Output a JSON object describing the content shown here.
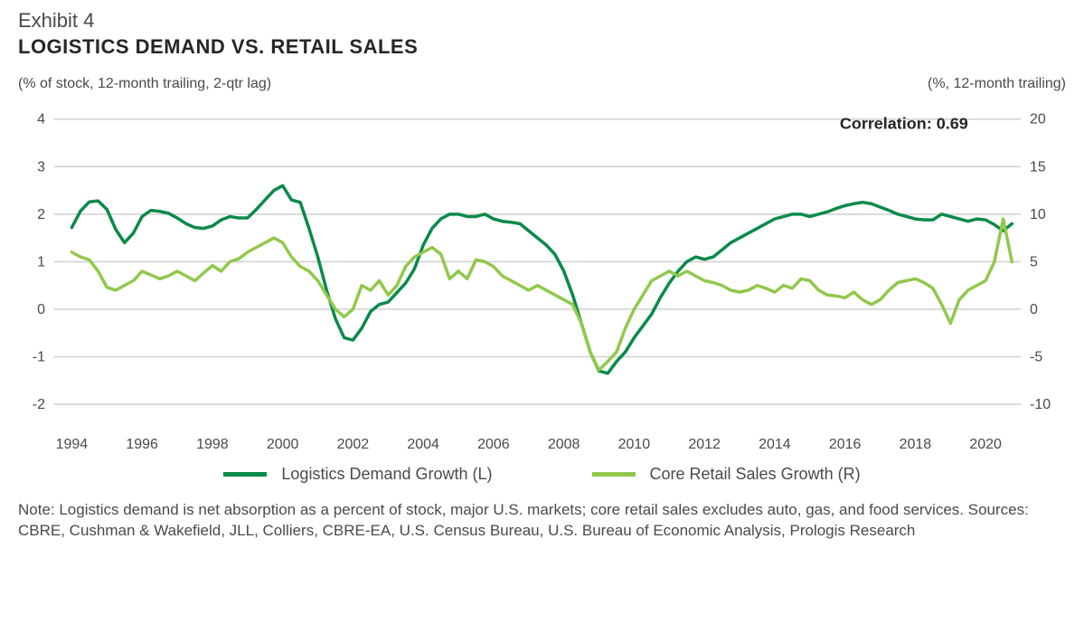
{
  "exhibit_label": "Exhibit 4",
  "title": "LOGISTICS DEMAND VS. RETAIL SALES",
  "left_axis_label": "(% of stock, 12-month trailing, 2-qtr lag)",
  "right_axis_label": "(%, 12-month trailing)",
  "correlation_label": "Correlation: 0.69",
  "legend": {
    "series1": "Logistics Demand Growth (L)",
    "series2": "Core Retail Sales Growth (R)"
  },
  "note": "Note: Logistics demand is net absorption as a percent of stock, major U.S. markets; core retail sales excludes auto, gas, and food services. Sources: CBRE, Cushman & Wakefield, JLL, Colliers, CBRE-EA, U.S. Census Bureau, U.S. Bureau of Economic Analysis, Prologis Research",
  "chart": {
    "type": "line-dual-axis",
    "background_color": "#ffffff",
    "grid_color": "#cfcfcf",
    "grid_width": 1.5,
    "text_color": "#4a4a4a",
    "tick_fontsize": 16,
    "title_fontsize": 22,
    "x": {
      "min": 1993.5,
      "max": 2021.0,
      "ticks": [
        1994,
        1996,
        1998,
        2000,
        2002,
        2004,
        2006,
        2008,
        2010,
        2012,
        2014,
        2016,
        2018,
        2020
      ]
    },
    "y_left": {
      "min": -2.4,
      "max": 4.3,
      "ticks": [
        -2,
        -1,
        0,
        1,
        2,
        3,
        4
      ]
    },
    "y_right": {
      "min": -12,
      "max": 21.5,
      "ticks": [
        -10,
        -5,
        0,
        5,
        10,
        15,
        20
      ]
    },
    "correlation_pos": {
      "x": 2019.5,
      "y_left": 3.8
    },
    "series": [
      {
        "name": "Logistics Demand Growth (L)",
        "axis": "left",
        "color": "#0a8a4a",
        "width": 3.5,
        "x": [
          1994.0,
          1994.25,
          1994.5,
          1994.75,
          1995.0,
          1995.25,
          1995.5,
          1995.75,
          1996.0,
          1996.25,
          1996.5,
          1996.75,
          1997.0,
          1997.25,
          1997.5,
          1997.75,
          1998.0,
          1998.25,
          1998.5,
          1998.75,
          1999.0,
          1999.25,
          1999.5,
          1999.75,
          2000.0,
          2000.25,
          2000.5,
          2000.75,
          2001.0,
          2001.25,
          2001.5,
          2001.75,
          2002.0,
          2002.25,
          2002.5,
          2002.75,
          2003.0,
          2003.25,
          2003.5,
          2003.75,
          2004.0,
          2004.25,
          2004.5,
          2004.75,
          2005.0,
          2005.25,
          2005.5,
          2005.75,
          2006.0,
          2006.25,
          2006.5,
          2006.75,
          2007.0,
          2007.25,
          2007.5,
          2007.75,
          2008.0,
          2008.25,
          2008.5,
          2008.75,
          2009.0,
          2009.25,
          2009.5,
          2009.75,
          2010.0,
          2010.25,
          2010.5,
          2010.75,
          2011.0,
          2011.25,
          2011.5,
          2011.75,
          2012.0,
          2012.25,
          2012.5,
          2012.75,
          2013.0,
          2013.25,
          2013.5,
          2013.75,
          2014.0,
          2014.25,
          2014.5,
          2014.75,
          2015.0,
          2015.25,
          2015.5,
          2015.75,
          2016.0,
          2016.25,
          2016.5,
          2016.75,
          2017.0,
          2017.25,
          2017.5,
          2017.75,
          2018.0,
          2018.25,
          2018.5,
          2018.75,
          2019.0,
          2019.25,
          2019.5,
          2019.75,
          2020.0,
          2020.25,
          2020.5,
          2020.75
        ],
        "y": [
          1.72,
          2.07,
          2.26,
          2.28,
          2.1,
          1.68,
          1.4,
          1.6,
          1.95,
          2.08,
          2.06,
          2.02,
          1.92,
          1.8,
          1.72,
          1.7,
          1.75,
          1.88,
          1.95,
          1.92,
          1.92,
          2.1,
          2.3,
          2.5,
          2.6,
          2.3,
          2.25,
          1.7,
          1.1,
          0.4,
          -0.2,
          -0.6,
          -0.65,
          -0.4,
          -0.05,
          0.1,
          0.15,
          0.35,
          0.55,
          0.85,
          1.35,
          1.7,
          1.9,
          2.0,
          2.0,
          1.95,
          1.95,
          2.0,
          1.9,
          1.85,
          1.83,
          1.8,
          1.65,
          1.5,
          1.35,
          1.15,
          0.8,
          0.3,
          -0.3,
          -0.9,
          -1.3,
          -1.35,
          -1.1,
          -0.9,
          -0.6,
          -0.35,
          -0.1,
          0.25,
          0.55,
          0.8,
          1.0,
          1.1,
          1.05,
          1.1,
          1.25,
          1.4,
          1.5,
          1.6,
          1.7,
          1.8,
          1.9,
          1.95,
          2.0,
          2.0,
          1.95,
          2.0,
          2.05,
          2.12,
          2.18,
          2.22,
          2.25,
          2.22,
          2.15,
          2.08,
          2.0,
          1.95,
          1.9,
          1.88,
          1.88,
          2.0,
          1.95,
          1.9,
          1.85,
          1.9,
          1.88,
          1.78,
          1.65,
          1.8
        ]
      },
      {
        "name": "Core Retail Sales Growth (R)",
        "axis": "right",
        "color": "#91c84b",
        "width": 3.5,
        "x": [
          1994.0,
          1994.25,
          1994.5,
          1994.75,
          1995.0,
          1995.25,
          1995.5,
          1995.75,
          1996.0,
          1996.25,
          1996.5,
          1996.75,
          1997.0,
          1997.25,
          1997.5,
          1997.75,
          1998.0,
          1998.25,
          1998.5,
          1998.75,
          1999.0,
          1999.25,
          1999.5,
          1999.75,
          2000.0,
          2000.25,
          2000.5,
          2000.75,
          2001.0,
          2001.25,
          2001.5,
          2001.75,
          2002.0,
          2002.25,
          2002.5,
          2002.75,
          2003.0,
          2003.25,
          2003.5,
          2003.75,
          2004.0,
          2004.25,
          2004.5,
          2004.75,
          2005.0,
          2005.25,
          2005.5,
          2005.75,
          2006.0,
          2006.25,
          2006.5,
          2006.75,
          2007.0,
          2007.25,
          2007.5,
          2007.75,
          2008.0,
          2008.25,
          2008.5,
          2008.75,
          2009.0,
          2009.25,
          2009.5,
          2009.75,
          2010.0,
          2010.25,
          2010.5,
          2010.75,
          2011.0,
          2011.25,
          2011.5,
          2011.75,
          2012.0,
          2012.25,
          2012.5,
          2012.75,
          2013.0,
          2013.25,
          2013.5,
          2013.75,
          2014.0,
          2014.25,
          2014.5,
          2014.75,
          2015.0,
          2015.25,
          2015.5,
          2015.75,
          2016.0,
          2016.25,
          2016.5,
          2016.75,
          2017.0,
          2017.25,
          2017.5,
          2017.75,
          2018.0,
          2018.25,
          2018.5,
          2018.75,
          2019.0,
          2019.25,
          2019.5,
          2019.75,
          2020.0,
          2020.25,
          2020.5,
          2020.75
        ],
        "y": [
          6.0,
          5.5,
          5.2,
          4.0,
          2.3,
          2.0,
          2.5,
          3.0,
          4.0,
          3.6,
          3.2,
          3.5,
          4.0,
          3.5,
          3.0,
          3.8,
          4.6,
          4.0,
          5.0,
          5.3,
          6.0,
          6.5,
          7.0,
          7.5,
          7.0,
          5.5,
          4.5,
          4.0,
          3.0,
          1.5,
          0.0,
          -0.8,
          0.0,
          2.5,
          2.0,
          3.0,
          1.5,
          2.5,
          4.5,
          5.5,
          6.0,
          6.5,
          5.8,
          3.2,
          4.0,
          3.2,
          5.2,
          5.0,
          4.5,
          3.5,
          3.0,
          2.5,
          2.0,
          2.5,
          2.0,
          1.5,
          1.0,
          0.5,
          -1.5,
          -4.5,
          -6.4,
          -5.5,
          -4.5,
          -2.0,
          0.0,
          1.5,
          3.0,
          3.5,
          4.0,
          3.5,
          4.0,
          3.5,
          3.0,
          2.8,
          2.5,
          2.0,
          1.8,
          2.0,
          2.5,
          2.2,
          1.8,
          2.5,
          2.2,
          3.2,
          3.0,
          2.0,
          1.5,
          1.4,
          1.2,
          1.8,
          1.0,
          0.5,
          1.0,
          2.0,
          2.8,
          3.0,
          3.2,
          2.8,
          2.2,
          0.5,
          -1.5,
          1.0,
          2.0,
          2.5,
          3.0,
          5.0,
          9.5,
          5.0
        ]
      }
    ]
  }
}
